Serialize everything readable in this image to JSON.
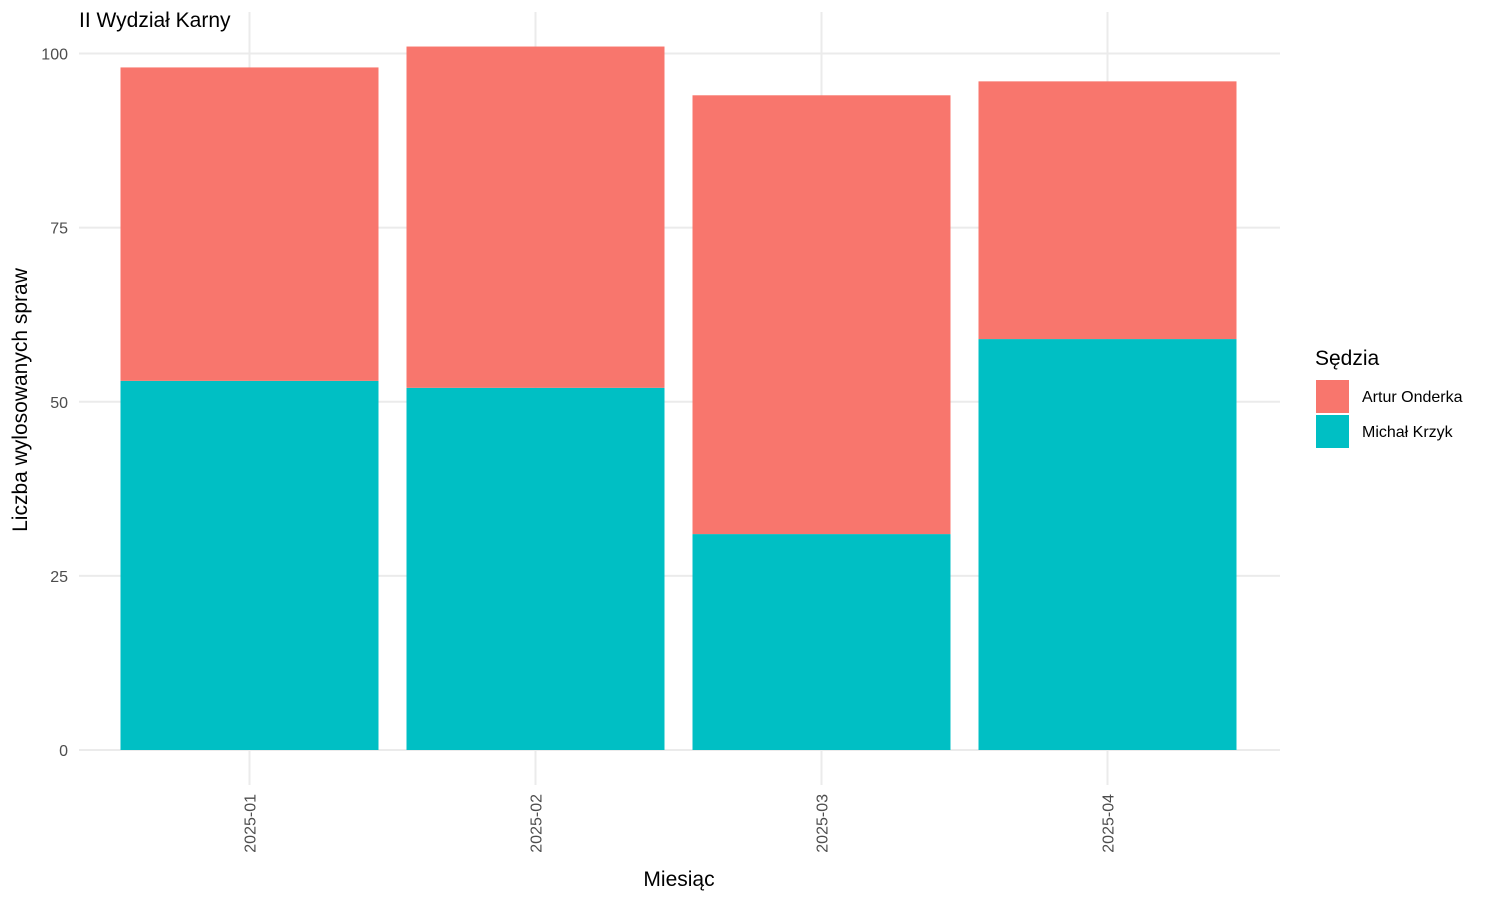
{
  "chart_data": {
    "type": "bar",
    "stacked": true,
    "title": "II Wydział Karny",
    "xlabel": "Miesiąc",
    "ylabel": "Liczba wylosowanych spraw",
    "categories": [
      "2025-01",
      "2025-02",
      "2025-03",
      "2025-04"
    ],
    "series": [
      {
        "name": "Michał Krzyk",
        "color": "#00bfc4",
        "values": [
          53,
          52,
          31,
          59
        ]
      },
      {
        "name": "Artur Onderka",
        "color": "#f8766d",
        "values": [
          45,
          49,
          63,
          37
        ]
      }
    ],
    "ylim": [
      0,
      103
    ],
    "yticks": [
      0,
      25,
      50,
      75,
      100
    ],
    "grid": true,
    "legend": {
      "title": "Sędzia",
      "position": "right",
      "items": [
        {
          "name": "Artur Onderka",
          "color": "#f8766d"
        },
        {
          "name": "Michał Krzyk",
          "color": "#00bfc4"
        }
      ]
    }
  }
}
